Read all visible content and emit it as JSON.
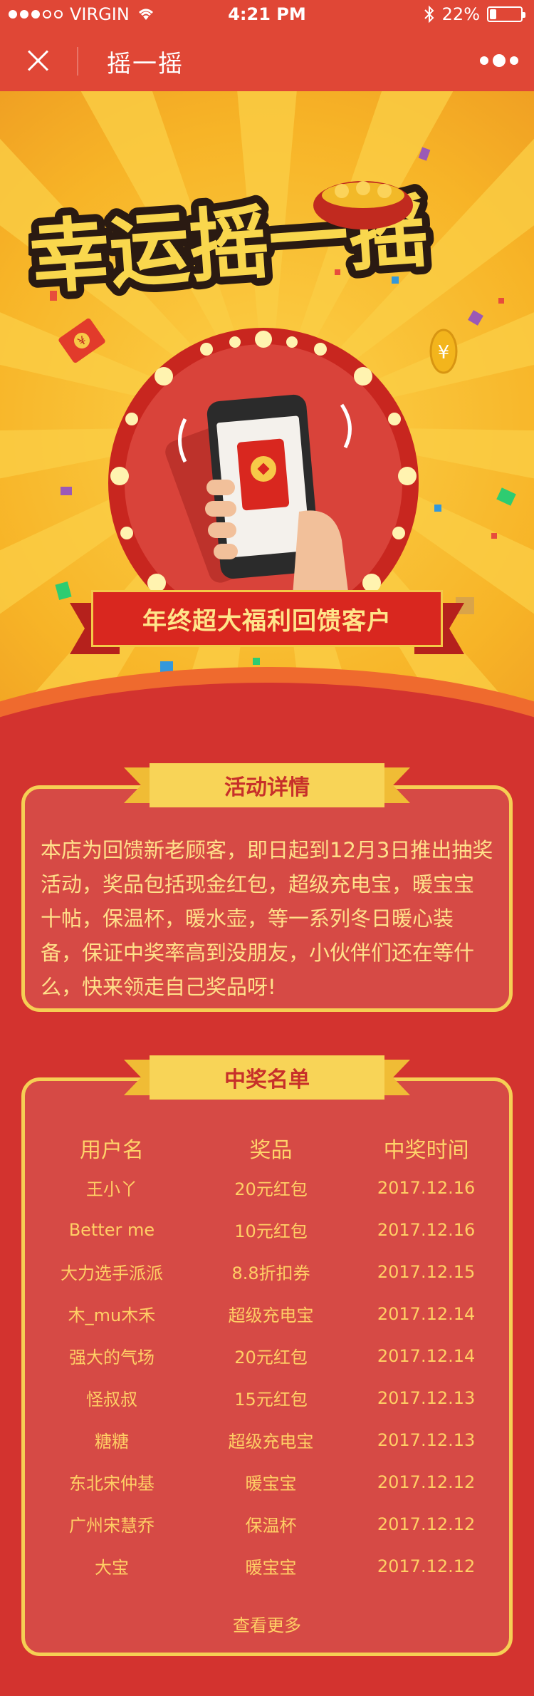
{
  "status_bar": {
    "carrier": "VIRGIN",
    "time": "4:21 PM",
    "battery_text": "22%",
    "battery_level": 0.22
  },
  "nav": {
    "title": "摇一摇"
  },
  "hero": {
    "title": "幸运摇一摇",
    "banner_text": "年终超大福利回馈客户",
    "coin_symbol": "¥",
    "colors": {
      "background": "#f7b427",
      "accent_red": "#d9271f"
    }
  },
  "activity": {
    "heading": "活动详情",
    "text": "本店为回馈新老顾客，即日起到12月3日推出抽奖活动，奖品包括现金红包，超级充电宝，暖宝宝十帖，保温杯，暖水壶，等一系列冬日暖心装备，保证中奖率高到没朋友，小伙伴们还在等什么，快来领走自己奖品呀!"
  },
  "winners": {
    "heading": "中奖名单",
    "columns": [
      "用户名",
      "奖品",
      "中奖时间"
    ],
    "rows": [
      [
        "王小丫",
        "20元红包",
        "2017.12.16"
      ],
      [
        "Better me",
        "10元红包",
        "2017.12.16"
      ],
      [
        "大力选手派派",
        "8.8折扣券",
        "2017.12.15"
      ],
      [
        "木_mu木禾",
        "超级充电宝",
        "2017.12.14"
      ],
      [
        "强大的气场",
        "20元红包",
        "2017.12.14"
      ],
      [
        "怪叔叔",
        "15元红包",
        "2017.12.13"
      ],
      [
        "糖糖",
        "超级充电宝",
        "2017.12.13"
      ],
      [
        "东北宋仲基",
        "暖宝宝",
        "2017.12.12"
      ],
      [
        "广州宋慧乔",
        "保温杯",
        "2017.12.12"
      ],
      [
        "大宝",
        "暖宝宝",
        "2017.12.12"
      ]
    ],
    "see_more": "查看更多"
  }
}
